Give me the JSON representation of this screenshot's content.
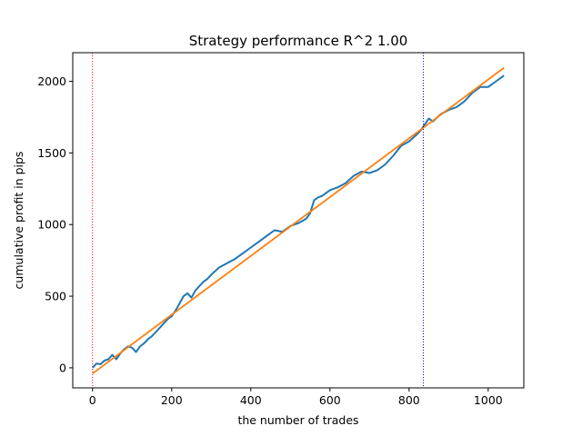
{
  "chart_data": {
    "type": "line",
    "title": "Strategy performance R^2 1.00",
    "xlabel": "the number of trades",
    "ylabel": "cumulative profit in pips",
    "xlim": [
      -50,
      1090
    ],
    "ylim": [
      -140,
      2200
    ],
    "x_ticks": [
      0,
      200,
      400,
      600,
      800,
      1000
    ],
    "y_ticks": [
      0,
      500,
      1000,
      1500,
      2000
    ],
    "grid": false,
    "series": [
      {
        "color": "#1f77b4",
        "style": "solid",
        "x": [
          0,
          10,
          20,
          30,
          40,
          50,
          60,
          70,
          80,
          90,
          100,
          110,
          120,
          130,
          140,
          150,
          160,
          170,
          180,
          190,
          200,
          210,
          220,
          230,
          240,
          250,
          260,
          270,
          280,
          290,
          300,
          320,
          340,
          360,
          380,
          400,
          420,
          440,
          460,
          480,
          500,
          520,
          540,
          550,
          560,
          570,
          580,
          600,
          620,
          640,
          660,
          680,
          700,
          720,
          740,
          760,
          780,
          800,
          820,
          830,
          840,
          850,
          860,
          880,
          900,
          920,
          940,
          960,
          980,
          1000,
          1020,
          1040
        ],
        "y": [
          0,
          30,
          25,
          50,
          60,
          90,
          60,
          100,
          130,
          150,
          140,
          110,
          150,
          170,
          200,
          220,
          250,
          280,
          310,
          340,
          360,
          400,
          450,
          500,
          520,
          490,
          540,
          570,
          600,
          620,
          650,
          700,
          730,
          760,
          800,
          840,
          880,
          920,
          960,
          950,
          990,
          1010,
          1040,
          1080,
          1170,
          1190,
          1200,
          1240,
          1260,
          1290,
          1340,
          1370,
          1360,
          1380,
          1420,
          1480,
          1550,
          1580,
          1630,
          1660,
          1700,
          1740,
          1720,
          1770,
          1800,
          1820,
          1860,
          1920,
          1960,
          1960,
          2000,
          2040
        ]
      },
      {
        "color": "#ff7f0e",
        "style": "solid",
        "x": [
          0,
          1040
        ],
        "y": [
          -40,
          2095
        ]
      },
      {
        "color": "#ff0000",
        "style": "dotted",
        "vertical_at_x": 0
      },
      {
        "color": "#0000cc",
        "style": "dotted",
        "vertical_at_x": 836
      }
    ]
  }
}
